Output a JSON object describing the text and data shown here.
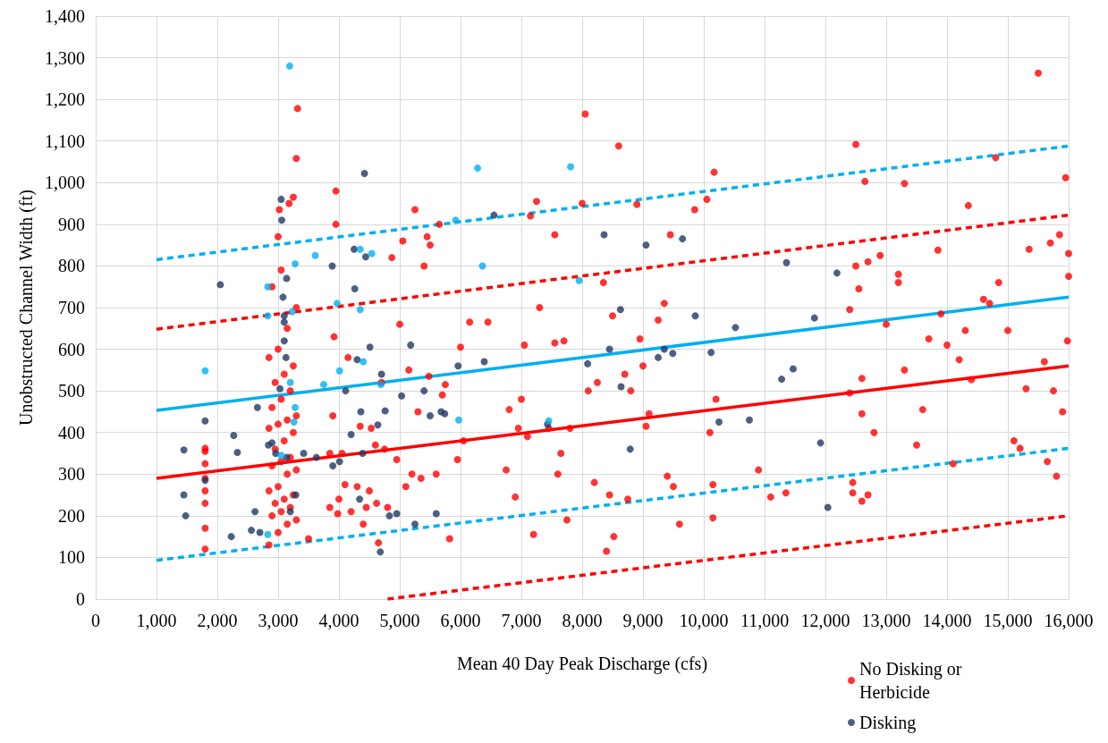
{
  "chart_data": {
    "type": "scatter",
    "xlabel": "Mean 40 Day Peak Discharge (cfs)",
    "ylabel": "Unobstructed Channel Width (ft)",
    "xlim": [
      0,
      16000
    ],
    "xticks": [
      0,
      {
        "value": 1000,
        "label": "1,000"
      },
      {
        "value": 2000,
        "label": "2,000"
      },
      {
        "value": 3000,
        "label": "3,000"
      },
      {
        "value": 4000,
        "label": "4,000"
      },
      {
        "value": 5000,
        "label": "5,000"
      },
      {
        "value": 6000,
        "label": "6,000"
      },
      {
        "value": 7000,
        "label": "7,000"
      },
      {
        "value": 8000,
        "label": "8,000"
      },
      {
        "value": 9000,
        "label": "9,000"
      },
      {
        "value": 10000,
        "label": "10,000"
      },
      {
        "value": 11000,
        "label": "11,000"
      },
      {
        "value": 12000,
        "label": "12,000"
      },
      {
        "value": 13000,
        "label": "13,000"
      },
      {
        "value": 14000,
        "label": "14,000"
      },
      {
        "value": 15000,
        "label": "15,000"
      },
      {
        "value": 16000,
        "label": "16,000"
      }
    ],
    "ylim": [
      0,
      1400
    ],
    "yticks": [
      0,
      100,
      200,
      300,
      400,
      500,
      600,
      700,
      800,
      900,
      {
        "value": 1000,
        "label": "1,000"
      },
      {
        "value": 1100,
        "label": "1,100"
      },
      {
        "value": 1200,
        "label": "1,200"
      },
      {
        "value": 1300,
        "label": "1,300"
      },
      {
        "value": 1400,
        "label": "1,400"
      }
    ],
    "grid": true,
    "legend": "bottom right",
    "marker": "circle",
    "series": [
      {
        "name": "No Disking or Herbicide",
        "color": "#ff0000",
        "x": [
          1800,
          1800,
          1800,
          1800,
          1800,
          1800,
          1800,
          1800,
          2850,
          3000,
          3150,
          3300,
          2900,
          3050,
          3200,
          2950,
          3100,
          3250,
          2850,
          3000,
          3150,
          3300,
          2900,
          3050,
          3200,
          2950,
          3100,
          3250,
          2850,
          3000,
          3150,
          3300,
          2900,
          3050,
          3200,
          2950,
          3100,
          3250,
          2850,
          3000,
          3150,
          3300,
          2900,
          3050,
          3000,
          3020,
          3180,
          3300,
          3320,
          3250,
          3500,
          3850,
          3850,
          3900,
          3920,
          3950,
          3950,
          3980,
          4000,
          4050,
          4100,
          4150,
          4200,
          4300,
          4350,
          4400,
          4450,
          4500,
          4530,
          4600,
          4620,
          4650,
          4700,
          4750,
          4800,
          4870,
          4950,
          5000,
          5050,
          5100,
          5150,
          5200,
          5250,
          5300,
          5350,
          5400,
          5450,
          5480,
          5500,
          5600,
          5650,
          5700,
          5750,
          5820,
          5950,
          6000,
          6050,
          6150,
          6450,
          6750,
          6800,
          6900,
          6950,
          7000,
          7050,
          7100,
          7150,
          7200,
          7250,
          7300,
          7450,
          7550,
          7550,
          7600,
          7650,
          7700,
          7750,
          7800,
          8000,
          8050,
          8100,
          8200,
          8250,
          8350,
          8400,
          8450,
          8500,
          8520,
          8600,
          8700,
          8750,
          8800,
          8900,
          8950,
          9000,
          9050,
          9100,
          9250,
          9350,
          9400,
          9450,
          9500,
          9600,
          9850,
          10050,
          10100,
          10150,
          10150,
          10170,
          10200,
          10900,
          11100,
          11350,
          12400,
          12400,
          12450,
          12450,
          12500,
          12500,
          12550,
          12600,
          12600,
          12650,
          12600,
          12700,
          12700,
          12800,
          12900,
          13000,
          13200,
          13200,
          13300,
          13300,
          13500,
          13600,
          13700,
          13850,
          13900,
          14000,
          14100,
          14200,
          14300,
          14350,
          14400,
          14600,
          14700,
          14800,
          14850,
          15000,
          15100,
          15200,
          15300,
          15350,
          15500,
          15600,
          15650,
          15700,
          15750,
          15800,
          15850,
          15900,
          15950,
          15980,
          16000,
          16000
        ],
        "values": [
          120,
          170,
          230,
          260,
          290,
          325,
          355,
          362,
          130,
          160,
          180,
          190,
          200,
          210,
          220,
          230,
          240,
          250,
          260,
          270,
          300,
          310,
          320,
          330,
          340,
          360,
          380,
          400,
          410,
          420,
          430,
          440,
          460,
          480,
          500,
          520,
          540,
          560,
          580,
          600,
          650,
          700,
          750,
          790,
          870,
          935,
          950,
          1058,
          1178,
          965,
          145,
          220,
          350,
          440,
          630,
          980,
          900,
          205,
          240,
          350,
          275,
          580,
          210,
          270,
          415,
          180,
          220,
          260,
          410,
          370,
          230,
          135,
          520,
          360,
          220,
          820,
          335,
          660,
          860,
          270,
          550,
          300,
          935,
          450,
          290,
          800,
          870,
          535,
          850,
          300,
          900,
          490,
          515,
          145,
          335,
          605,
          380,
          665,
          665,
          310,
          455,
          245,
          410,
          480,
          610,
          390,
          920,
          155,
          955,
          700,
          410,
          875,
          615,
          300,
          350,
          620,
          190,
          410,
          950,
          1165,
          500,
          280,
          520,
          760,
          115,
          250,
          680,
          150,
          1088,
          540,
          240,
          500,
          948,
          625,
          560,
          415,
          445,
          670,
          710,
          295,
          875,
          270,
          180,
          935,
          960,
          400,
          275,
          195,
          1025,
          480,
          310,
          245,
          255,
          695,
          495,
          280,
          255,
          1092,
          800,
          745,
          530,
          445,
          1003,
          235,
          250,
          810,
          400,
          825,
          660,
          780,
          760,
          550,
          998,
          370,
          455,
          625,
          838,
          685,
          610,
          325,
          575,
          645,
          945,
          527,
          720,
          710,
          1060,
          760,
          645,
          380,
          362,
          505,
          840,
          1263,
          570,
          330,
          855,
          500,
          295,
          875,
          450,
          1012,
          620,
          830,
          775
        ]
      },
      {
        "name": "Disking",
        "color": "#1f3864",
        "x": [
          1450,
          1450,
          1480,
          1800,
          1800,
          2050,
          2230,
          2270,
          2330,
          2560,
          2620,
          2660,
          2700,
          2840,
          2900,
          2960,
          3030,
          3050,
          3060,
          3080,
          3100,
          3100,
          3100,
          3130,
          3140,
          3140,
          3200,
          3290,
          3420,
          3630,
          3890,
          3900,
          4010,
          4110,
          4200,
          4250,
          4260,
          4300,
          4340,
          4360,
          4390,
          4420,
          4440,
          4510,
          4640,
          4700,
          4760,
          4830,
          4680,
          4950,
          5030,
          5180,
          5250,
          5400,
          5500,
          5600,
          5680,
          5740,
          5960,
          6390,
          6550,
          7430,
          8090,
          8360,
          8450,
          8630,
          8640,
          8790,
          9050,
          9250,
          9350,
          9490,
          9650,
          9860,
          10120,
          10250,
          10520,
          10750,
          11280,
          11360,
          11470,
          11820,
          11920,
          12040,
          12190
        ],
        "values": [
          358,
          250,
          200,
          428,
          285,
          755,
          150,
          393,
          352,
          165,
          210,
          460,
          160,
          370,
          375,
          350,
          505,
          960,
          910,
          725,
          680,
          665,
          620,
          580,
          770,
          340,
          210,
          250,
          350,
          340,
          800,
          320,
          330,
          500,
          395,
          840,
          745,
          575,
          240,
          450,
          350,
          1022,
          822,
          605,
          418,
          540,
          452,
          200,
          113,
          205,
          488,
          610,
          180,
          500,
          440,
          205,
          450,
          445,
          560,
          570,
          922,
          420,
          565,
          875,
          600,
          695,
          510,
          360,
          850,
          580,
          600,
          590,
          865,
          680,
          592,
          425,
          652,
          430,
          528,
          808,
          553,
          675,
          375,
          220,
          783
        ]
      },
      {
        "color": "#00b0f0",
        "x": [
          1800,
          3190,
          2830,
          2830,
          3280,
          3260,
          3280,
          3230,
          2830,
          3050,
          3610,
          3750,
          3970,
          4010,
          4350,
          4350,
          4400,
          4540,
          4690,
          5920,
          5970,
          6280,
          6360,
          7810,
          7950,
          7450,
          3200
        ],
        "values": [
          548,
          1280,
          750,
          680,
          805,
          425,
          460,
          690,
          155,
          345,
          825,
          515,
          710,
          548,
          695,
          840,
          570,
          830,
          515,
          910,
          430,
          1035,
          800,
          1038,
          765,
          428,
          520
        ]
      },
      {
        "type": "line",
        "color": "#ff0000",
        "line_style": "solid",
        "marker": "none",
        "x": [
          1000,
          16000
        ],
        "values": [
          290,
          560
        ]
      },
      {
        "type": "line",
        "color": "#00b0f0",
        "line_style": "solid",
        "marker": "none",
        "x": [
          1000,
          16000
        ],
        "values": [
          453,
          725
        ]
      },
      {
        "type": "line",
        "color": "#ff0000",
        "line_style": "dashed",
        "marker": "none",
        "x": [
          1000,
          16000
        ],
        "values": [
          648,
          922
        ]
      },
      {
        "type": "line",
        "color": "#ff0000",
        "line_style": "dashed",
        "marker": "none",
        "x": [
          4800,
          16000
        ],
        "values": [
          0,
          200
        ]
      },
      {
        "type": "line",
        "color": "#00b0f0",
        "line_style": "dashed",
        "marker": "none",
        "x": [
          1000,
          16000
        ],
        "values": [
          815,
          1088
        ]
      },
      {
        "type": "line",
        "color": "#00b0f0",
        "line_style": "dashed",
        "marker": "none",
        "x": [
          1000,
          16000
        ],
        "values": [
          93,
          362
        ]
      }
    ]
  }
}
